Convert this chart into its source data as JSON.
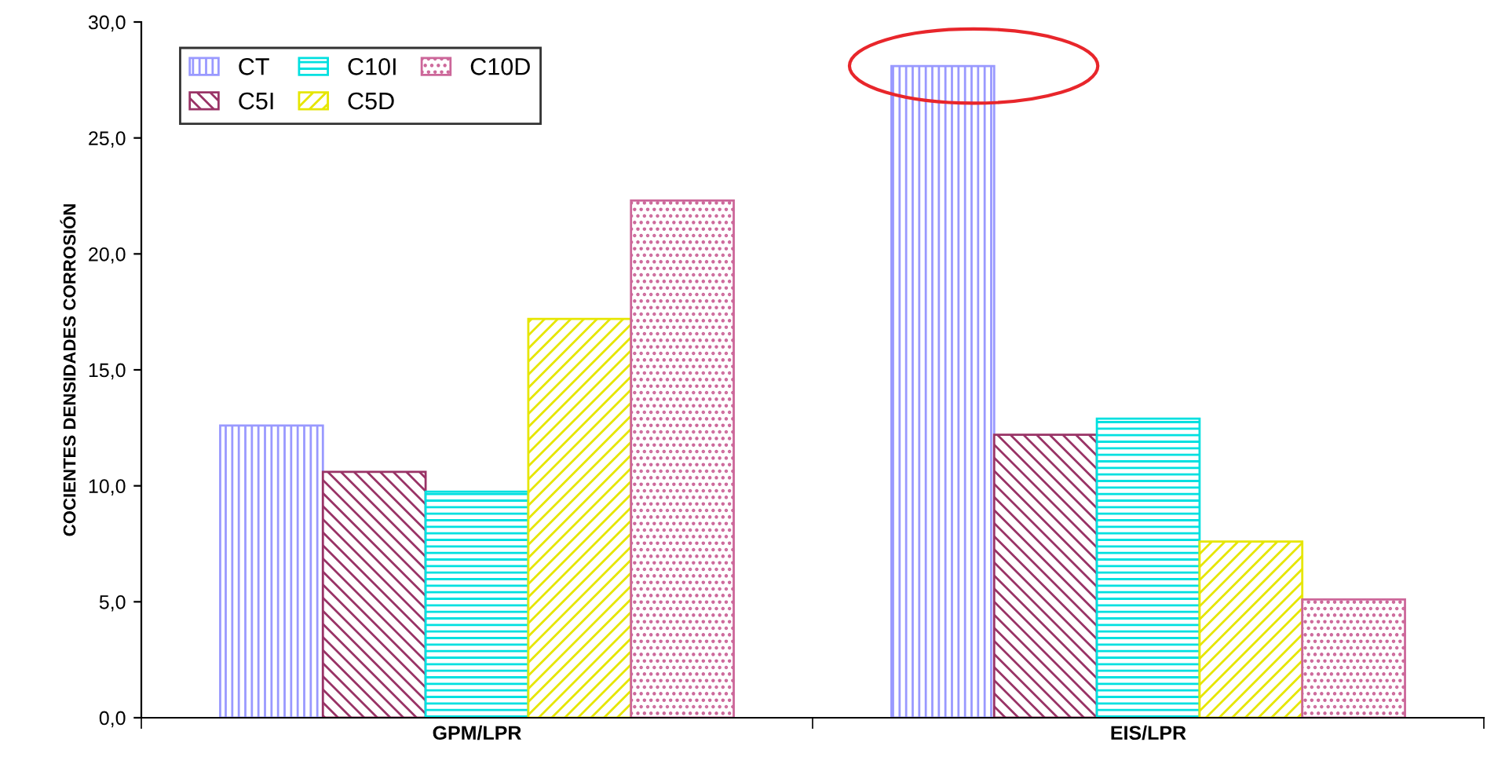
{
  "chart_data": {
    "type": "bar",
    "ylabel": "COCIENTES DENSIDADES CORROSIÓN",
    "categories": [
      "GPM/LPR",
      "EIS/LPR"
    ],
    "series": [
      {
        "name": "CT",
        "color": "#9999ff",
        "values": [
          12.6,
          28.1
        ]
      },
      {
        "name": "C5I",
        "color": "#993366",
        "values": [
          10.6,
          12.2
        ]
      },
      {
        "name": "C10I",
        "color": "#00e0e0",
        "values": [
          9.75,
          12.9
        ]
      },
      {
        "name": "C5D",
        "color": "#e6e600",
        "values": [
          17.2,
          7.6
        ]
      },
      {
        "name": "C10D",
        "color": "#cc6699",
        "values": [
          22.3,
          5.1
        ]
      }
    ],
    "ylim": [
      0,
      30
    ],
    "yticks": [
      {
        "value": 0,
        "label": "0,0"
      },
      {
        "value": 5,
        "label": "5,0"
      },
      {
        "value": 10,
        "label": "10,0"
      },
      {
        "value": 15,
        "label": "15,0"
      },
      {
        "value": 20,
        "label": "20,0"
      },
      {
        "value": 25,
        "label": "25,0"
      },
      {
        "value": 30,
        "label": "30,0"
      }
    ],
    "grid": false,
    "legend": "top left"
  }
}
